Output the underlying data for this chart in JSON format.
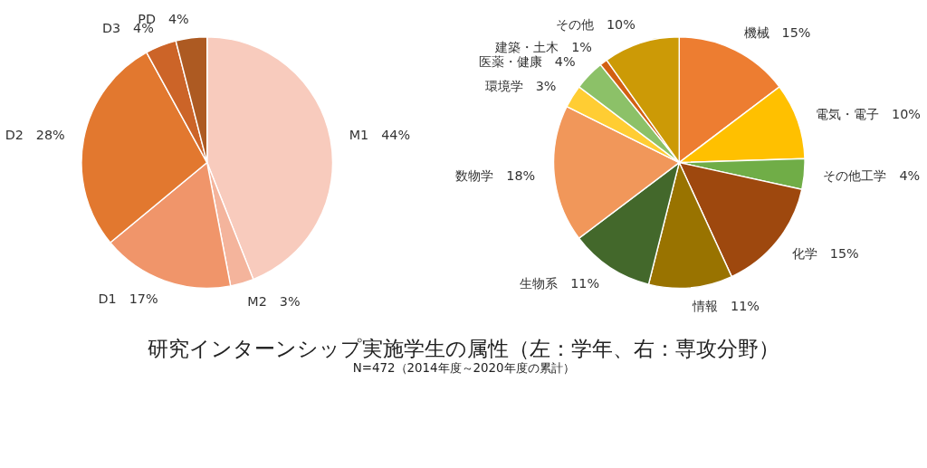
{
  "chart_data": [
    {
      "type": "pie",
      "title": "研究インターンシップ実施学生の属性（左：学年、右：専攻分野）",
      "subtitle": "N=472（2014年度～2020年度の累計）",
      "categories": [
        "M1",
        "M2",
        "D1",
        "D2",
        "D3",
        "PD"
      ],
      "values": [
        44,
        3,
        17,
        28,
        4,
        4
      ],
      "value_labels": [
        "44%",
        "3%",
        "17%",
        "28%",
        "4%",
        "4%"
      ],
      "colors": [
        "#f8cbbd",
        "#f4b49c",
        "#f0956a",
        "#e2782f",
        "#cc6428",
        "#ad5a22"
      ]
    },
    {
      "type": "pie",
      "categories": [
        "機械",
        "電気・電子",
        "その他工学",
        "化学",
        "情報",
        "生物系",
        "数物学",
        "環境学",
        "医薬・健康",
        "建築・土木",
        "その他"
      ],
      "values": [
        15,
        10,
        4,
        15,
        11,
        11,
        18,
        3,
        4,
        1,
        10
      ],
      "value_labels": [
        "15%",
        "10%",
        "4%",
        "15%",
        "11%",
        "11%",
        "18%",
        "3%",
        "4%",
        "1%",
        "10%"
      ],
      "colors": [
        "#ed7d31",
        "#ffc000",
        "#70ad47",
        "#9e480e",
        "#997300",
        "#43682b",
        "#f1975a",
        "#ffcd33",
        "#8cc168",
        "#d26012",
        "#cc9a06"
      ]
    }
  ]
}
